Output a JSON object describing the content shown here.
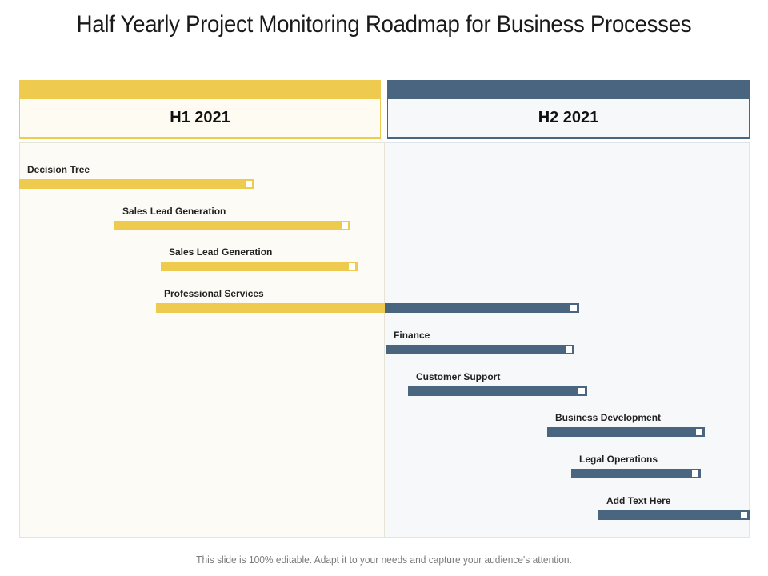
{
  "title": "Half Yearly Project Monitoring Roadmap for Business Processes",
  "columns": [
    {
      "label": "H1 2021",
      "color": "#EECB4F"
    },
    {
      "label": "H2 2021",
      "color": "#4A657F"
    }
  ],
  "colors": {
    "h1": "#EECB4F",
    "h2": "#4A657F",
    "marker": "#FFFFFF"
  },
  "timeline": {
    "start": 0,
    "end": 12,
    "unit": "month"
  },
  "tasks": [
    {
      "label": "Decision Tree",
      "start": 0.0,
      "end": 3.87
    },
    {
      "label": "Sales Lead Generation",
      "start": 1.57,
      "end": 5.45
    },
    {
      "label": "Sales Lead Generation",
      "start": 2.32,
      "end": 5.55
    },
    {
      "label": "Professional Services",
      "start": 2.25,
      "end": 9.2
    },
    {
      "label": "Finance",
      "start": 6.02,
      "end": 9.12
    },
    {
      "label": "Customer Support",
      "start": 6.39,
      "end": 9.33
    },
    {
      "label": "Business Development",
      "start": 8.67,
      "end": 11.26
    },
    {
      "label": "Legal Operations",
      "start": 9.07,
      "end": 11.2
    },
    {
      "label": "Add Text Here",
      "start": 9.51,
      "end": 12.0
    }
  ],
  "footer": "This slide is 100% editable. Adapt it to your needs and capture your audience's attention."
}
